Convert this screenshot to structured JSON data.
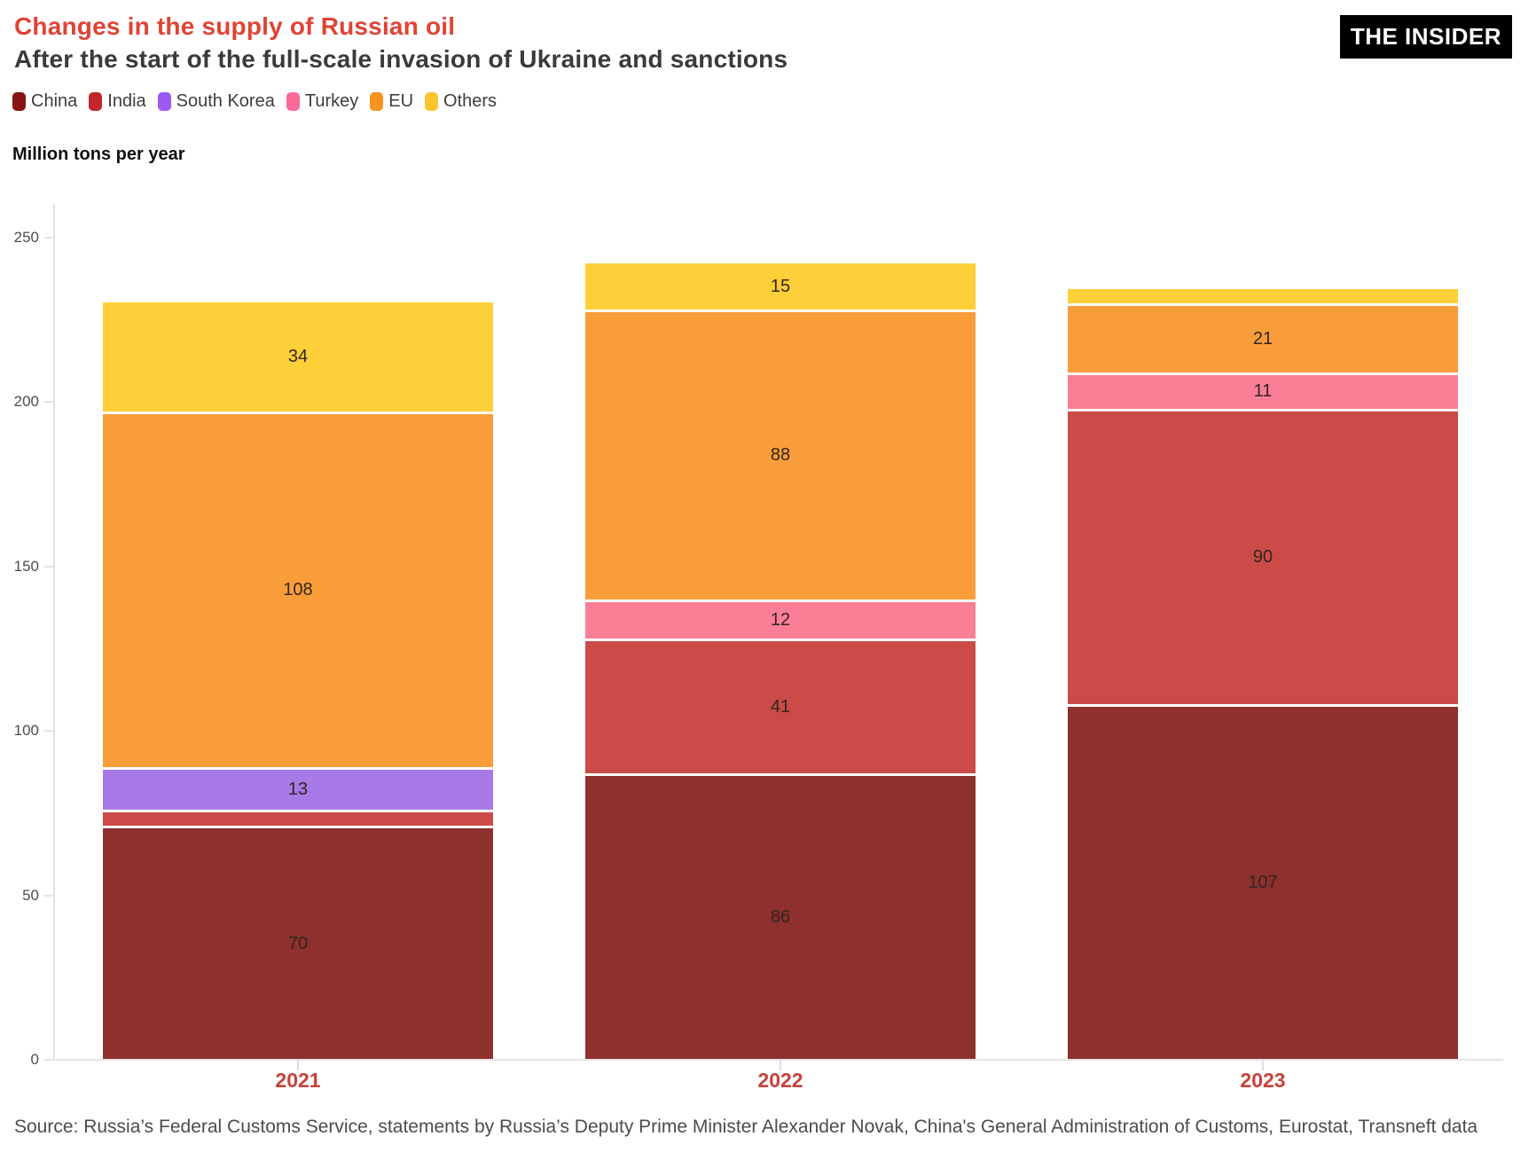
{
  "page": {
    "title": "Changes in the supply of Russian oil",
    "subtitle": "After the start of the full-scale invasion of Ukraine and sanctions",
    "brand": "THE INSIDER",
    "units_label": "Million tons per year",
    "source": "Source: Russia’s Federal Customs Service, statements by Russia’s Deputy Prime Minister Alexander Novak, China's General Administration of Customs, Eurostat, Transneft data"
  },
  "colors": {
    "title": "#e04334",
    "subtitle": "#3a3a3a",
    "year_label": "#c7423a",
    "axis_text": "#4d4d4d",
    "axis_line": "#e4e4e4",
    "segment_label": "#33251f",
    "legend_text": "#3d3d3d",
    "brand_bg": "#000000",
    "brand_text": "#ffffff",
    "background": "#ffffff"
  },
  "chart_data": {
    "type": "bar",
    "stacked": true,
    "title": "Changes in the supply of Russian oil",
    "subtitle": "After the start of the full-scale invasion of Ukraine and sanctions",
    "xlabel": "",
    "ylabel": "Million tons per year",
    "ylim": [
      0,
      250
    ],
    "yticks": [
      0,
      50,
      100,
      150,
      200,
      250
    ],
    "grid": false,
    "legend_position": "top-left",
    "categories": [
      "2021",
      "2022",
      "2023"
    ],
    "series": [
      {
        "name": "China",
        "legend_color": "#871314",
        "bar_color": "#8e302e",
        "values": [
          70,
          86,
          107
        ],
        "labels": [
          "70",
          "86",
          "107"
        ]
      },
      {
        "name": "India",
        "legend_color": "#c0262a",
        "bar_color": "#cb4b49",
        "values": [
          5,
          41,
          90
        ],
        "labels": [
          "",
          "41",
          "90"
        ]
      },
      {
        "name": "South Korea",
        "legend_color": "#9c59f2",
        "bar_color": "#a87ae8",
        "values": [
          13,
          0,
          0
        ],
        "labels": [
          "13",
          "",
          ""
        ]
      },
      {
        "name": "Turkey",
        "legend_color": "#fa6b97",
        "bar_color": "#f97e96",
        "values": [
          0,
          12,
          11
        ],
        "labels": [
          "",
          "12",
          "11"
        ]
      },
      {
        "name": "EU",
        "legend_color": "#f7931e",
        "bar_color": "#f99d3b",
        "values": [
          108,
          88,
          21
        ],
        "labels": [
          "108",
          "88",
          "21"
        ]
      },
      {
        "name": "Others",
        "legend_color": "#fcc52f",
        "bar_color": "#fdcf38",
        "values": [
          34,
          15,
          5
        ],
        "labels": [
          "34",
          "15",
          ""
        ]
      }
    ],
    "totals": [
      230,
      242,
      234
    ]
  }
}
